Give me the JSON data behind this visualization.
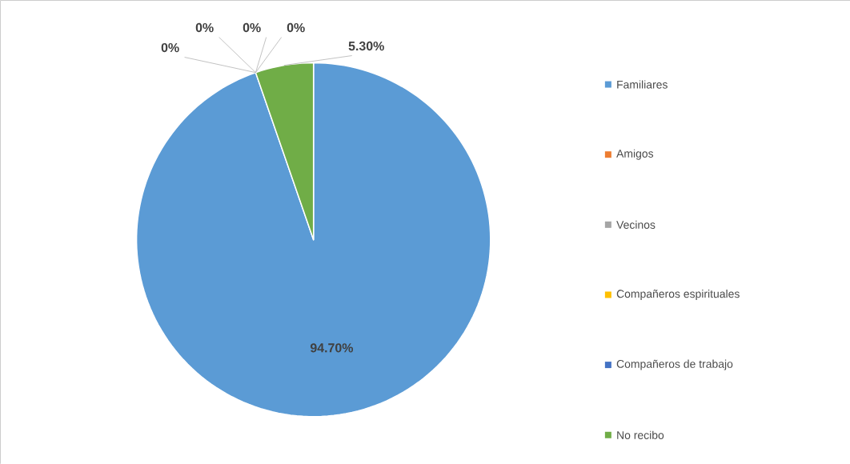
{
  "chart_data": {
    "type": "pie",
    "categories": [
      "Familiares",
      "Amigos",
      "Vecinos",
      "Compañeros espirituales",
      "Compañeros de trabajo",
      "No recibo"
    ],
    "values": [
      94.7,
      0,
      0,
      0,
      0,
      5.3
    ],
    "value_labels": [
      "94.70%",
      "0%",
      "0%",
      "0%",
      "0%",
      "5.30%"
    ],
    "colors": [
      "#5b9bd5",
      "#ed7d31",
      "#a5a5a5",
      "#ffc000",
      "#4472c4",
      "#70ad47"
    ],
    "legend": "right"
  }
}
